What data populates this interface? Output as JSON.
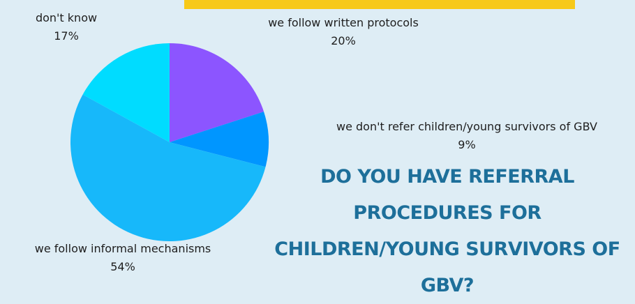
{
  "question": {
    "line1": "DO YOU HAVE REFERRAL  PROCEDURES FOR",
    "line2": "CHILDREN/YOUNG SURVIVORS OF GBV?"
  },
  "colors": {
    "background": "#deedf5",
    "banner": "#f7c919",
    "question_text": "#1d6f9a"
  },
  "chart_data": {
    "type": "pie",
    "title": "",
    "slices": [
      {
        "label": "we follow written protocols",
        "value": 20,
        "display": "20%",
        "color": "#8c55ff"
      },
      {
        "label": "we don't refer children/young survivors of GBV",
        "value": 9,
        "display": "9%",
        "color": "#0096ff"
      },
      {
        "label": "we follow informal mechanisms",
        "value": 54,
        "display": "54%",
        "color": "#17b8fa"
      },
      {
        "label": "don't know",
        "value": 17,
        "display": "17%",
        "color": "#00dcff"
      }
    ]
  }
}
